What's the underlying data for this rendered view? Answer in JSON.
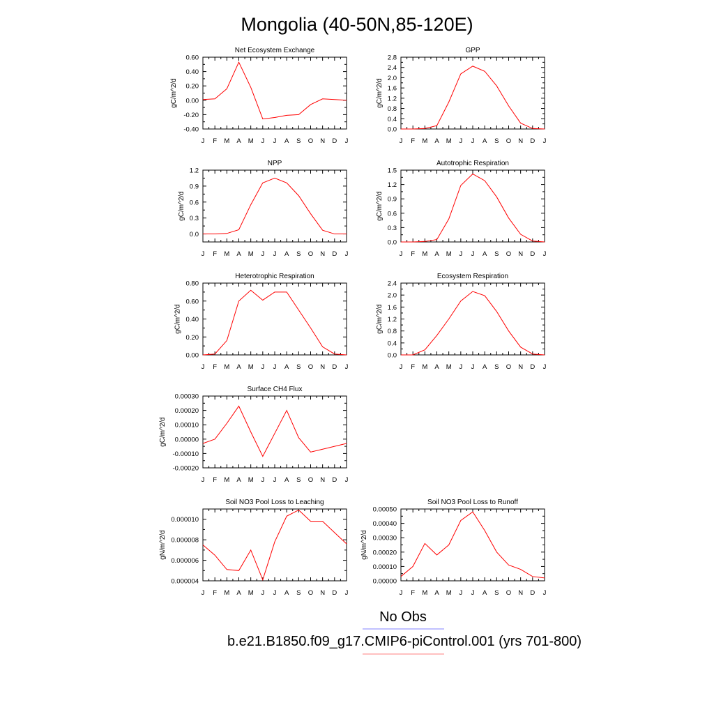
{
  "figure": {
    "title": "Mongolia (40-50N,85-120E)",
    "legend": [
      {
        "label": "No Obs",
        "color": "#8080ff"
      },
      {
        "label": "b.e21.B1850.f09_g17.CMIP6-piControl.001 (yrs 701-800)",
        "color": "#ff8080"
      }
    ],
    "line_color": "#ff0000"
  },
  "chart_data": [
    {
      "type": "line",
      "title": "Net Ecosystem Exchange",
      "ylabel": "gC/m^2/d",
      "x": [
        "J",
        "F",
        "M",
        "A",
        "M",
        "J",
        "J",
        "A",
        "S",
        "O",
        "N",
        "D",
        "J"
      ],
      "series": [
        {
          "values": [
            0.01,
            0.02,
            0.16,
            0.53,
            0.18,
            -0.26,
            -0.24,
            -0.21,
            -0.2,
            -0.06,
            0.02,
            0.01,
            0.0
          ]
        }
      ],
      "ylim": [
        -0.4,
        0.6
      ],
      "yticks": [
        "-0.40",
        "-0.20",
        "0.00",
        "0.20",
        "0.40",
        "0.60"
      ],
      "ytick_values": [
        -0.4,
        -0.2,
        0.0,
        0.2,
        0.4,
        0.6
      ]
    },
    {
      "type": "line",
      "title": "GPP",
      "ylabel": "gC/m^2/d",
      "x": [
        "J",
        "F",
        "M",
        "A",
        "M",
        "J",
        "J",
        "A",
        "S",
        "O",
        "N",
        "D",
        "J"
      ],
      "series": [
        {
          "values": [
            0.0,
            0.0,
            0.02,
            0.13,
            1.05,
            2.15,
            2.45,
            2.25,
            1.68,
            0.9,
            0.23,
            0.02,
            0.0
          ]
        }
      ],
      "ylim": [
        0.0,
        2.8
      ],
      "yticks": [
        "0.0",
        "0.4",
        "0.8",
        "1.2",
        "1.6",
        "2.0",
        "2.4",
        "2.8"
      ],
      "ytick_values": [
        0.0,
        0.4,
        0.8,
        1.2,
        1.6,
        2.0,
        2.4,
        2.8
      ]
    },
    {
      "type": "line",
      "title": "NPP",
      "ylabel": "gC/m^2/d",
      "x": [
        "J",
        "F",
        "M",
        "A",
        "M",
        "J",
        "J",
        "A",
        "S",
        "O",
        "N",
        "D",
        "J"
      ],
      "series": [
        {
          "values": [
            0.0,
            0.0,
            0.01,
            0.08,
            0.55,
            0.96,
            1.05,
            0.96,
            0.72,
            0.38,
            0.07,
            0.0,
            0.0
          ]
        }
      ],
      "ylim": [
        -0.15,
        1.2
      ],
      "yticks": [
        "0.0",
        "0.3",
        "0.6",
        "0.9",
        "1.2"
      ],
      "ytick_values": [
        0.0,
        0.3,
        0.6,
        0.9,
        1.2
      ]
    },
    {
      "type": "line",
      "title": "Autotrophic Respiration",
      "ylabel": "gC/m^2/d",
      "x": [
        "J",
        "F",
        "M",
        "A",
        "M",
        "J",
        "J",
        "A",
        "S",
        "O",
        "N",
        "D",
        "J"
      ],
      "series": [
        {
          "values": [
            0.0,
            0.0,
            0.01,
            0.05,
            0.48,
            1.18,
            1.42,
            1.28,
            0.94,
            0.5,
            0.16,
            0.02,
            0.0
          ]
        }
      ],
      "ylim": [
        0.0,
        1.5
      ],
      "yticks": [
        "0.0",
        "0.3",
        "0.6",
        "0.9",
        "1.2",
        "1.5"
      ],
      "ytick_values": [
        0.0,
        0.3,
        0.6,
        0.9,
        1.2,
        1.5
      ]
    },
    {
      "type": "line",
      "title": "Heterotrophic Respiration",
      "ylabel": "gC/m^2/d",
      "x": [
        "J",
        "F",
        "M",
        "A",
        "M",
        "J",
        "J",
        "A",
        "S",
        "O",
        "N",
        "D",
        "J"
      ],
      "series": [
        {
          "values": [
            0.0,
            0.01,
            0.16,
            0.6,
            0.72,
            0.61,
            0.7,
            0.7,
            0.5,
            0.3,
            0.09,
            0.01,
            0.0
          ]
        }
      ],
      "ylim": [
        0.0,
        0.8
      ],
      "yticks": [
        "0.00",
        "0.20",
        "0.40",
        "0.60",
        "0.80"
      ],
      "ytick_values": [
        0.0,
        0.2,
        0.4,
        0.6,
        0.8
      ]
    },
    {
      "type": "line",
      "title": "Ecosystem Respiration",
      "ylabel": "gC/m^2/d",
      "x": [
        "J",
        "F",
        "M",
        "A",
        "M",
        "J",
        "J",
        "A",
        "S",
        "O",
        "N",
        "D",
        "J"
      ],
      "series": [
        {
          "values": [
            0.0,
            0.0,
            0.17,
            0.65,
            1.2,
            1.8,
            2.12,
            1.98,
            1.45,
            0.8,
            0.26,
            0.03,
            0.0
          ]
        }
      ],
      "ylim": [
        0.0,
        2.4
      ],
      "yticks": [
        "0.0",
        "0.4",
        "0.8",
        "1.2",
        "1.6",
        "2.0",
        "2.4"
      ],
      "ytick_values": [
        0.0,
        0.4,
        0.8,
        1.2,
        1.6,
        2.0,
        2.4
      ]
    },
    {
      "type": "line",
      "title": "Surface CH4 Flux",
      "ylabel": "gC/m^2/d",
      "x": [
        "J",
        "F",
        "M",
        "A",
        "M",
        "J",
        "J",
        "A",
        "S",
        "O",
        "N",
        "D",
        "J"
      ],
      "series": [
        {
          "values": [
            -3e-05,
            0.0,
            0.00011,
            0.00023,
            5e-05,
            -0.00012,
            4e-05,
            0.0002,
            1e-05,
            -9e-05,
            -7e-05,
            -5e-05,
            -3e-05
          ]
        }
      ],
      "ylim": [
        -0.0002,
        0.0003
      ],
      "yticks": [
        "-0.00020",
        "-0.00010",
        "0.00000",
        "0.00010",
        "0.00020",
        "0.00030"
      ],
      "ytick_values": [
        -0.0002,
        -0.0001,
        0.0,
        0.0001,
        0.0002,
        0.0003
      ]
    },
    {
      "type": "line",
      "title": "Soil NO3 Pool Loss to Leaching",
      "ylabel": "gN/m^2/d",
      "x": [
        "J",
        "F",
        "M",
        "A",
        "M",
        "J",
        "J",
        "A",
        "S",
        "O",
        "N",
        "D",
        "J"
      ],
      "series": [
        {
          "values": [
            7.5e-06,
            6.5e-06,
            5.1e-06,
            5e-06,
            7e-06,
            4.1e-06,
            7.8e-06,
            1.03e-05,
            1.09e-05,
            9.8e-06,
            9.8e-06,
            8.7e-06,
            7.6e-06
          ]
        }
      ],
      "ylim": [
        4e-06,
        1.1e-05
      ],
      "yticks": [
        "0.000004",
        "0.000006",
        "0.000008",
        "0.000010"
      ],
      "ytick_values": [
        4e-06,
        6e-06,
        8e-06,
        1e-05
      ]
    },
    {
      "type": "line",
      "title": "Soil NO3 Pool Loss to Runoff",
      "ylabel": "gN/m^2/d",
      "x": [
        "J",
        "F",
        "M",
        "A",
        "M",
        "J",
        "J",
        "A",
        "S",
        "O",
        "N",
        "D",
        "J"
      ],
      "series": [
        {
          "values": [
            3e-05,
            0.0001,
            0.00026,
            0.00018,
            0.00025,
            0.00042,
            0.00048,
            0.00035,
            0.0002,
            0.00011,
            8e-05,
            3e-05,
            2e-05
          ]
        }
      ],
      "ylim": [
        0.0,
        0.0005
      ],
      "yticks": [
        "0.00000",
        "0.00010",
        "0.00020",
        "0.00030",
        "0.00040",
        "0.00050"
      ],
      "ytick_values": [
        0.0,
        0.0001,
        0.0002,
        0.0003,
        0.0004,
        0.0005
      ]
    }
  ]
}
